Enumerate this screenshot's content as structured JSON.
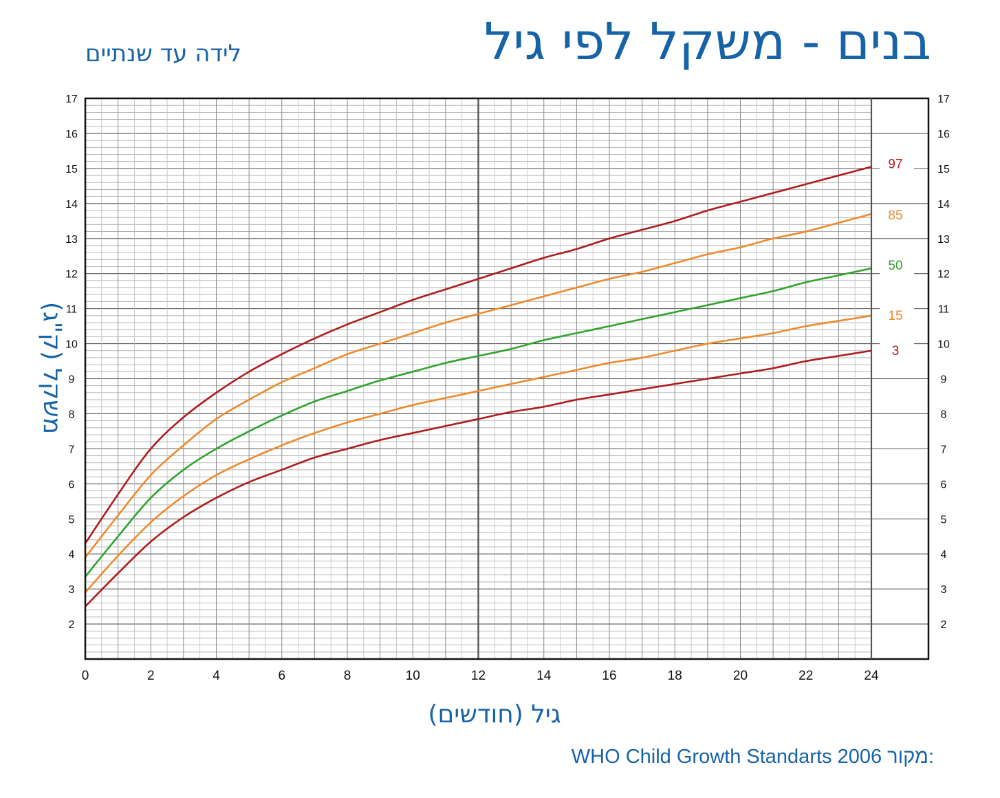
{
  "chart_data": {
    "type": "line",
    "title": "בנים - משקל לפי גיל",
    "subtitle": "לידה עד שנתיים",
    "xlabel": "גיל (חודשים)",
    "ylabel": "משקל (ק\"ג)",
    "xlim": [
      0,
      24
    ],
    "ylim": [
      1,
      17
    ],
    "x_ticks": [
      "0",
      "2",
      "4",
      "6",
      "8",
      "10",
      "12",
      "14",
      "16",
      "18",
      "20",
      "22",
      "24"
    ],
    "y_ticks": [
      "2",
      "3",
      "4",
      "5",
      "6",
      "7",
      "8",
      "9",
      "10",
      "11",
      "12",
      "13",
      "14",
      "15",
      "16",
      "17"
    ],
    "grid": true,
    "x": [
      0,
      1,
      2,
      3,
      4,
      5,
      6,
      7,
      8,
      9,
      10,
      11,
      12,
      13,
      14,
      15,
      16,
      17,
      18,
      19,
      20,
      21,
      22,
      23,
      24
    ],
    "series": [
      {
        "name": "97",
        "color": "#b01c1c",
        "values": [
          4.3,
          5.7,
          7.0,
          7.9,
          8.6,
          9.2,
          9.7,
          10.15,
          10.55,
          10.9,
          11.25,
          11.55,
          11.85,
          12.15,
          12.45,
          12.7,
          13.0,
          13.25,
          13.5,
          13.8,
          14.05,
          14.3,
          14.55,
          14.8,
          15.05
        ]
      },
      {
        "name": "85",
        "color": "#ee8a2a",
        "values": [
          3.9,
          5.1,
          6.25,
          7.1,
          7.85,
          8.4,
          8.9,
          9.3,
          9.7,
          10.0,
          10.3,
          10.6,
          10.85,
          11.1,
          11.35,
          11.6,
          11.85,
          12.05,
          12.3,
          12.55,
          12.75,
          13.0,
          13.2,
          13.45,
          13.7
        ]
      },
      {
        "name": "50",
        "color": "#2fa52c",
        "values": [
          3.35,
          4.5,
          5.6,
          6.4,
          7.0,
          7.5,
          7.95,
          8.35,
          8.65,
          8.95,
          9.2,
          9.45,
          9.65,
          9.85,
          10.1,
          10.3,
          10.5,
          10.7,
          10.9,
          11.1,
          11.3,
          11.5,
          11.75,
          11.95,
          12.15
        ]
      },
      {
        "name": "15",
        "color": "#ee8a2a",
        "values": [
          2.9,
          3.95,
          4.9,
          5.65,
          6.25,
          6.7,
          7.1,
          7.45,
          7.75,
          8.0,
          8.25,
          8.45,
          8.65,
          8.85,
          9.05,
          9.25,
          9.45,
          9.6,
          9.8,
          10.0,
          10.15,
          10.3,
          10.5,
          10.65,
          10.8
        ]
      },
      {
        "name": "3",
        "color": "#b01c1c",
        "values": [
          2.5,
          3.45,
          4.35,
          5.05,
          5.6,
          6.05,
          6.4,
          6.75,
          7.0,
          7.25,
          7.45,
          7.65,
          7.85,
          8.05,
          8.2,
          8.4,
          8.55,
          8.7,
          8.85,
          9.0,
          9.15,
          9.3,
          9.5,
          9.65,
          9.8
        ]
      }
    ],
    "source_label": "מקור:",
    "source_text": "WHO Child Growth Standarts 2006"
  }
}
